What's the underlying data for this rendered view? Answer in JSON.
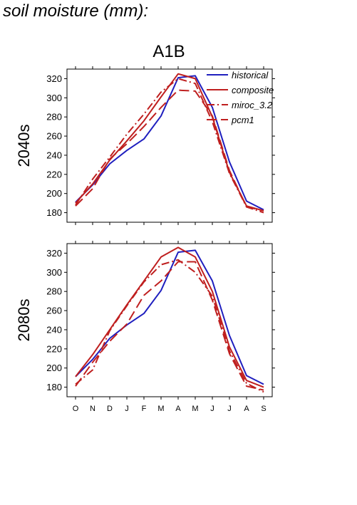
{
  "figure_title": "soil moisture (mm):",
  "panel_title": "A1B",
  "colors": {
    "historical": "#1f1fbf",
    "scenario": "#bf1f1f"
  },
  "chart_data": [
    {
      "type": "line",
      "row_label": "2040s",
      "categories": [
        "O",
        "N",
        "D",
        "J",
        "F",
        "M",
        "A",
        "M",
        "J",
        "J",
        "A",
        "S"
      ],
      "ylim": [
        170,
        330
      ],
      "yticks": [
        180,
        200,
        220,
        240,
        260,
        280,
        300,
        320
      ],
      "grid": false,
      "legend": "top-right",
      "series": [
        {
          "name": "historical",
          "color": "#1f1fbf",
          "dash": "solid",
          "values": [
            191,
            209,
            231,
            245,
            257,
            281,
            321,
            323,
            290,
            233,
            192,
            183
          ]
        },
        {
          "name": "composite",
          "color": "#bf1f1f",
          "dash": "solid",
          "values": [
            190,
            210,
            235,
            255,
            276,
            301,
            325,
            320,
            280,
            222,
            187,
            182
          ]
        },
        {
          "name": "miroc_3.2",
          "color": "#bf1f1f",
          "dash": "dashdot",
          "values": [
            188,
            215,
            238,
            262,
            283,
            306,
            320,
            315,
            275,
            221,
            186,
            180
          ]
        },
        {
          "name": "pcm1",
          "color": "#bf1f1f",
          "dash": "longdash",
          "values": [
            187,
            205,
            236,
            252,
            270,
            290,
            308,
            307,
            281,
            224,
            186,
            182
          ]
        }
      ]
    },
    {
      "type": "line",
      "row_label": "2080s",
      "categories": [
        "O",
        "N",
        "D",
        "J",
        "F",
        "M",
        "A",
        "M",
        "J",
        "J",
        "A",
        "S"
      ],
      "ylim": [
        170,
        330
      ],
      "yticks": [
        180,
        200,
        220,
        240,
        260,
        280,
        300,
        320
      ],
      "grid": false,
      "series": [
        {
          "name": "historical",
          "color": "#1f1fbf",
          "dash": "solid",
          "values": [
            191,
            209,
            231,
            245,
            257,
            281,
            321,
            323,
            291,
            234,
            192,
            183
          ]
        },
        {
          "name": "composite",
          "color": "#bf1f1f",
          "dash": "solid",
          "values": [
            191,
            214,
            240,
            266,
            291,
            316,
            326,
            316,
            280,
            222,
            187,
            180
          ]
        },
        {
          "name": "miroc_3.2",
          "color": "#bf1f1f",
          "dash": "dashdot",
          "values": [
            183,
            198,
            239,
            265,
            290,
            308,
            313,
            300,
            275,
            218,
            184,
            175
          ]
        },
        {
          "name": "pcm1",
          "color": "#bf1f1f",
          "dash": "longdash",
          "values": [
            181,
            206,
            228,
            246,
            276,
            291,
            311,
            311,
            271,
            215,
            181,
            177
          ]
        }
      ]
    }
  ]
}
